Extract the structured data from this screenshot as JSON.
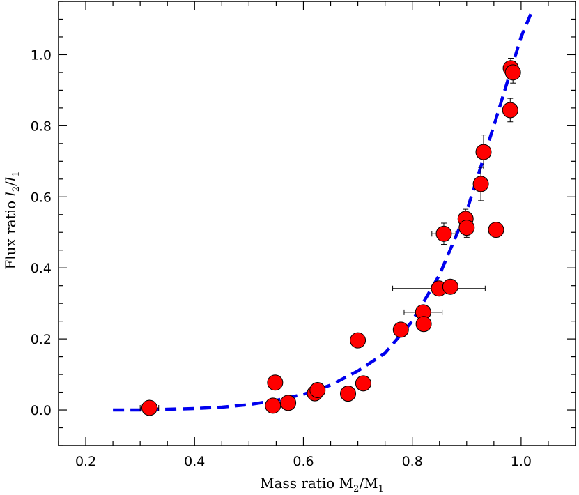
{
  "chart_data": {
    "type": "scatter",
    "title": "",
    "xlabel": {
      "main": "Mass ratio M",
      "sub1": "2",
      "mid": "/M",
      "sub2": "1"
    },
    "ylabel": {
      "main": "Flux ratio ",
      "var1": "l",
      "sub1": "2",
      "mid": "/",
      "var2": "l",
      "sub2": "1"
    },
    "xlim": [
      0.15,
      1.1
    ],
    "ylim": [
      -0.1,
      1.15
    ],
    "x_ticks": [
      "0.2",
      "0.4",
      "0.6",
      "0.8",
      "1.0"
    ],
    "y_ticks": [
      "0.0",
      "0.2",
      "0.4",
      "0.6",
      "0.8",
      "1.0"
    ],
    "grid": false,
    "colors": {
      "points": "#ff0000",
      "fit_line": "#0000ee",
      "frame": "#000000"
    },
    "points": [
      {
        "x": 0.317,
        "y": 0.006,
        "xerr": 0.017,
        "yerr": 0
      },
      {
        "x": 0.544,
        "y": 0.012,
        "xerr": 0,
        "yerr": 0
      },
      {
        "x": 0.548,
        "y": 0.077,
        "xerr": 0,
        "yerr": 0
      },
      {
        "x": 0.572,
        "y": 0.02,
        "xerr": 0,
        "yerr": 0
      },
      {
        "x": 0.621,
        "y": 0.047,
        "xerr": 0,
        "yerr": 0
      },
      {
        "x": 0.626,
        "y": 0.056,
        "xerr": 0,
        "yerr": 0
      },
      {
        "x": 0.682,
        "y": 0.046,
        "xerr": 0,
        "yerr": 0
      },
      {
        "x": 0.7,
        "y": 0.196,
        "xerr": 0,
        "yerr": 0
      },
      {
        "x": 0.71,
        "y": 0.075,
        "xerr": 0,
        "yerr": 0
      },
      {
        "x": 0.779,
        "y": 0.226,
        "xerr": 0,
        "yerr": 0
      },
      {
        "x": 0.82,
        "y": 0.275,
        "xerr": 0.035,
        "yerr": 0.01
      },
      {
        "x": 0.821,
        "y": 0.242,
        "xerr": 0,
        "yerr": 0
      },
      {
        "x": 0.849,
        "y": 0.342,
        "xerr": 0.085,
        "yerr": 0
      },
      {
        "x": 0.858,
        "y": 0.496,
        "xerr": 0.022,
        "yerr": 0.03
      },
      {
        "x": 0.87,
        "y": 0.347,
        "xerr": 0,
        "yerr": 0
      },
      {
        "x": 0.898,
        "y": 0.538,
        "xerr": 0,
        "yerr": 0.027
      },
      {
        "x": 0.9,
        "y": 0.513,
        "xerr": 0,
        "yerr": 0.027
      },
      {
        "x": 0.926,
        "y": 0.636,
        "xerr": 0,
        "yerr": 0.047
      },
      {
        "x": 0.931,
        "y": 0.726,
        "xerr": 0,
        "yerr": 0.048
      },
      {
        "x": 0.954,
        "y": 0.507,
        "xerr": 0,
        "yerr": 0
      },
      {
        "x": 0.98,
        "y": 0.844,
        "xerr": 0,
        "yerr": 0.033
      },
      {
        "x": 0.981,
        "y": 0.962,
        "xerr": 0,
        "yerr": 0.028
      },
      {
        "x": 0.985,
        "y": 0.95,
        "xerr": 0,
        "yerr": 0.03
      }
    ],
    "fit_curve": {
      "style": "dashed",
      "x": [
        0.25,
        0.3,
        0.35,
        0.4,
        0.45,
        0.5,
        0.55,
        0.6,
        0.65,
        0.7,
        0.75,
        0.8,
        0.85,
        0.9,
        0.95,
        1.0,
        1.022
      ],
      "y": [
        0.0,
        0.0,
        0.002,
        0.004,
        0.008,
        0.015,
        0.027,
        0.044,
        0.07,
        0.11,
        0.16,
        0.25,
        0.38,
        0.56,
        0.8,
        1.05,
        1.13
      ]
    }
  }
}
